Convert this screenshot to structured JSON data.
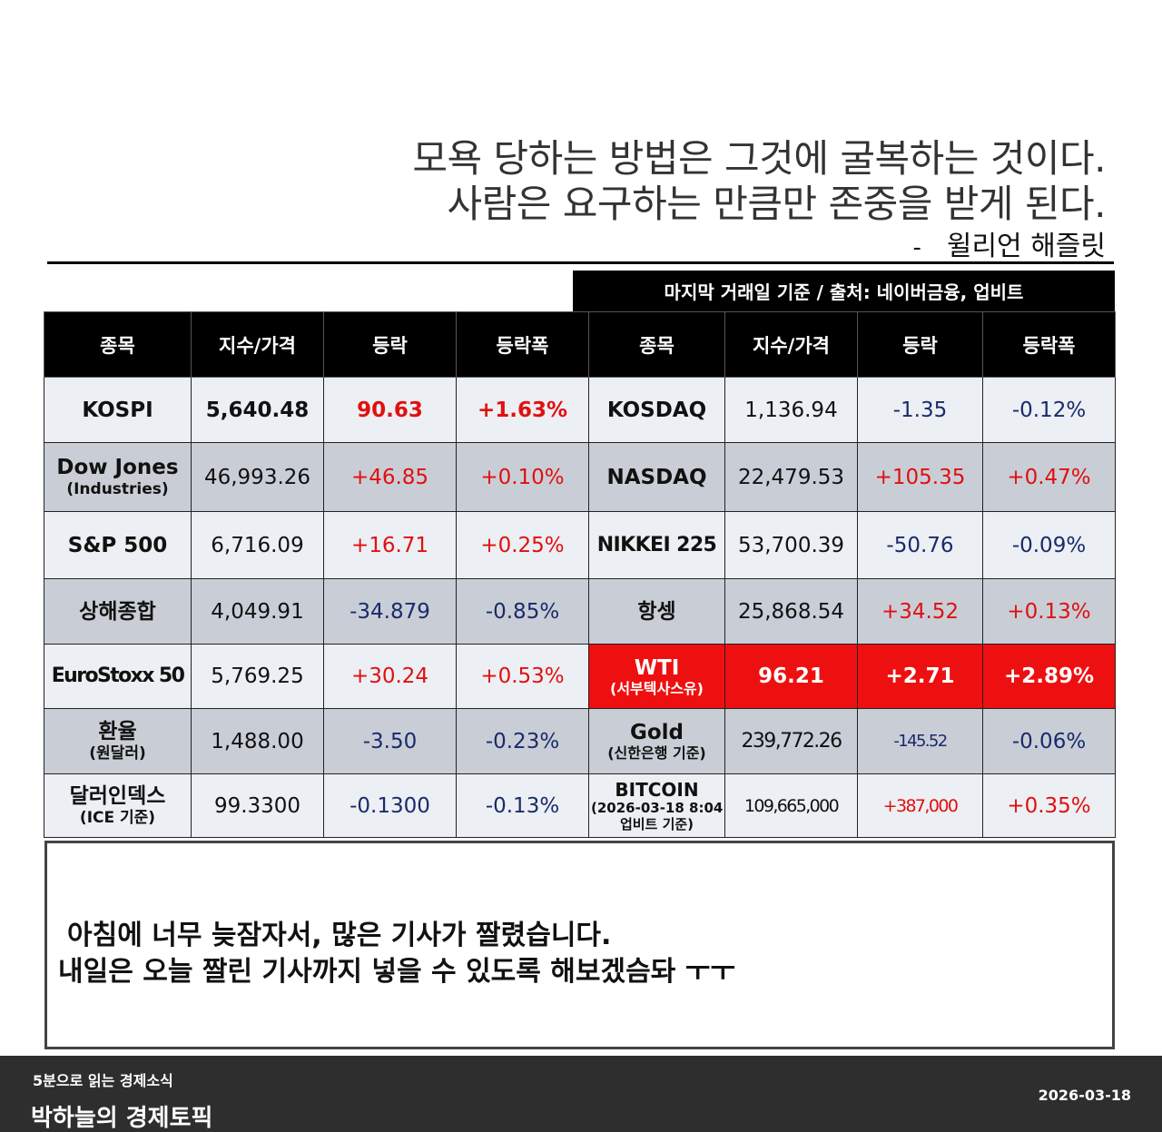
{
  "quote": {
    "line1": "모욕 당하는 방법은 그것에 굴복하는 것이다.",
    "line2": "사람은 요구하는 만큼만 존중을 받게 된다.",
    "dash": "-",
    "author": "윌리언 해즐릿"
  },
  "source_label": "마지막 거래일 기준 / 출처: 네이버금융, 업비트",
  "table": {
    "headers": [
      "종목",
      "지수/가격",
      "등락",
      "등락폭",
      "종목",
      "지수/가격",
      "등락",
      "등락폭"
    ],
    "rows": [
      {
        "left": {
          "name": "KOSPI",
          "sub": "",
          "price": "5,640.48",
          "change": "90.63",
          "pct": "+1.63%"
        },
        "right": {
          "name": "KOSDAQ",
          "sub": "",
          "price": "1,136.94",
          "change": "-1.35",
          "pct": "-0.12%"
        }
      },
      {
        "left": {
          "name": "Dow Jones",
          "sub": "(Industries)",
          "price": "46,993.26",
          "change": "+46.85",
          "pct": "+0.10%"
        },
        "right": {
          "name": "NASDAQ",
          "sub": "",
          "price": "22,479.53",
          "change": "+105.35",
          "pct": "+0.47%"
        }
      },
      {
        "left": {
          "name": "S&P 500",
          "sub": "",
          "price": "6,716.09",
          "change": "+16.71",
          "pct": "+0.25%"
        },
        "right": {
          "name": "NIKKEI 225",
          "sub": "",
          "price": "53,700.39",
          "change": "-50.76",
          "pct": "-0.09%"
        }
      },
      {
        "left": {
          "name": "상해종합",
          "sub": "",
          "price": "4,049.91",
          "change": "-34.879",
          "pct": "-0.85%"
        },
        "right": {
          "name": "항셍",
          "sub": "",
          "price": "25,868.54",
          "change": "+34.52",
          "pct": "+0.13%"
        }
      },
      {
        "left": {
          "name": "EuroStoxx 50",
          "sub": "",
          "price": "5,769.25",
          "change": "+30.24",
          "pct": "+0.53%"
        },
        "right": {
          "name": "WTI",
          "sub": "(서부텍사스유)",
          "price": "96.21",
          "change": "+2.71",
          "pct": "+2.89%"
        }
      },
      {
        "left": {
          "name": "환율",
          "sub": "(원달러)",
          "price": "1,488.00",
          "change": "-3.50",
          "pct": "-0.23%"
        },
        "right": {
          "name": "Gold",
          "sub": "(신한은행 기준)",
          "price": "239,772.26",
          "change": "-145.52",
          "pct": "-0.06%"
        }
      },
      {
        "left": {
          "name": "달러인덱스",
          "sub": "(ICE 기준)",
          "price": "99.3300",
          "change": "-0.1300",
          "pct": "-0.13%"
        },
        "right": {
          "name": "BITCOIN",
          "sub": "(2026-03-18 8:04",
          "sub2": "업비트 기준)",
          "price": "109,665,000",
          "change": "+387,000",
          "pct": "+0.35%"
        }
      }
    ]
  },
  "colors": {
    "up": "#e01010",
    "down": "#1a2a6b",
    "highlight": "#ee1010",
    "header_bg": "#000000",
    "footer_bg": "#2e2e2e"
  },
  "memo": {
    "line1": "아침에 너무 늦잠자서, 많은 기사가 짤렸습니다.",
    "line2": "내일은 오늘 짤린 기사까지 넣을 수 있도록 해보겠슴돠 ㅜㅜ"
  },
  "footer": {
    "series": "5분으로 읽는 경제소식",
    "brand": "박하늘의 경제토픽",
    "date": "2026-03-18"
  }
}
